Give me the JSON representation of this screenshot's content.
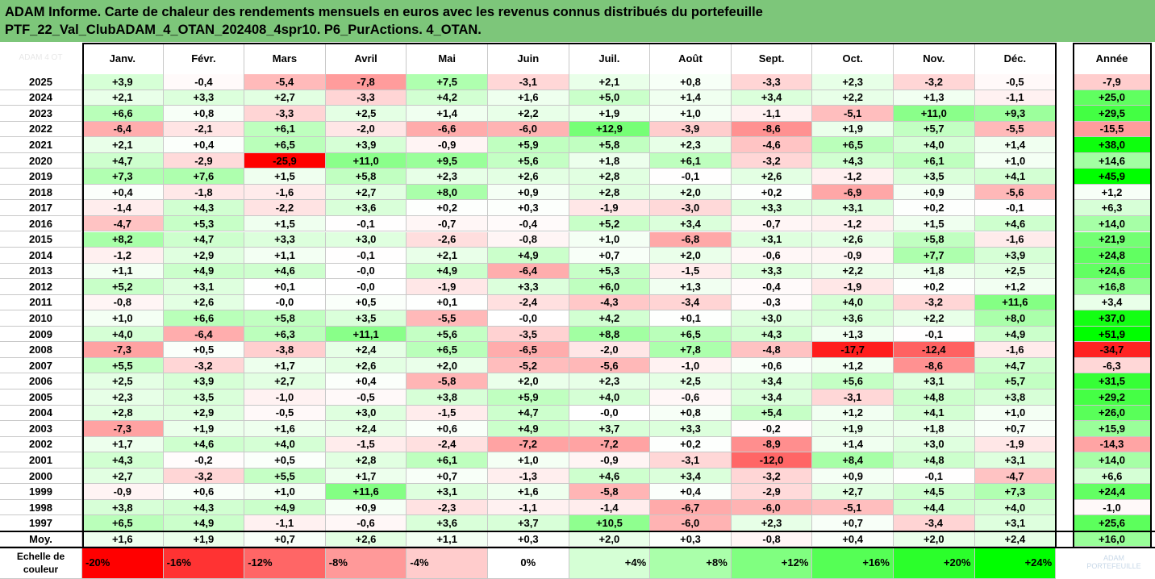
{
  "title_lines": [
    "ADAM Informe. Carte de chaleur des rendements mensuels en euros avec les revenus connus distribués du portefeuille",
    "PTF_22_Val_ClubADAM_4_OTAN_202408_4spr10. P6_PurActions. 4_OTAN."
  ],
  "corner_text": "ADAM 4 OT",
  "watermark": [
    "ADAM",
    "PORTEFEUILLE"
  ],
  "chart_data": {
    "type": "heatmap",
    "columns": [
      "Janv.",
      "Févr.",
      "Mars",
      "Avril",
      "Mai",
      "Juin",
      "Juil.",
      "Août",
      "Sept.",
      "Oct.",
      "Nov.",
      "Déc."
    ],
    "year_column": "Année",
    "rows": [
      {
        "label": "2025",
        "values": [
          "+3,9",
          "-0,4",
          "-5,4",
          "-7,8",
          "+7,5",
          "-3,1",
          "+2,1",
          "+0,8",
          "-3,3",
          "+2,3",
          "-3,2",
          "-0,5"
        ],
        "year": "-7,9"
      },
      {
        "label": "2024",
        "values": [
          "+2,1",
          "+3,3",
          "+2,7",
          "-3,3",
          "+4,2",
          "+1,6",
          "+5,0",
          "+1,4",
          "+3,4",
          "+2,2",
          "+1,3",
          "-1,1"
        ],
        "year": "+25,0"
      },
      {
        "label": "2023",
        "values": [
          "+6,6",
          "+0,8",
          "-3,3",
          "+2,5",
          "+1,4",
          "+2,2",
          "+1,9",
          "+1,0",
          "-1,1",
          "-5,1",
          "+11,0",
          "+9,3"
        ],
        "year": "+29,5"
      },
      {
        "label": "2022",
        "values": [
          "-6,4",
          "-2,1",
          "+6,1",
          "-2,0",
          "-6,6",
          "-6,0",
          "+12,9",
          "-3,9",
          "-8,6",
          "+1,9",
          "+5,7",
          "-5,5"
        ],
        "year": "-15,5"
      },
      {
        "label": "2021",
        "values": [
          "+2,1",
          "+0,4",
          "+6,5",
          "+3,9",
          "-0,9",
          "+5,9",
          "+5,8",
          "+2,3",
          "-4,6",
          "+6,5",
          "+4,0",
          "+1,4"
        ],
        "year": "+38,0"
      },
      {
        "label": "2020",
        "values": [
          "+4,7",
          "-2,9",
          "-25,9",
          "+11,0",
          "+9,5",
          "+5,6",
          "+1,8",
          "+6,1",
          "-3,2",
          "+4,3",
          "+6,1",
          "+1,0"
        ],
        "year": "+14,6"
      },
      {
        "label": "2019",
        "values": [
          "+7,3",
          "+7,6",
          "+1,5",
          "+5,8",
          "+2,3",
          "+2,6",
          "+2,8",
          "-0,1",
          "+2,6",
          "-1,2",
          "+3,5",
          "+4,1"
        ],
        "year": "+45,9"
      },
      {
        "label": "2018",
        "values": [
          "+0,4",
          "-1,8",
          "-1,6",
          "+2,7",
          "+8,0",
          "+0,9",
          "+2,8",
          "+2,0",
          "+0,2",
          "-6,9",
          "+0,9",
          "-5,6"
        ],
        "year": "+1,2"
      },
      {
        "label": "2017",
        "values": [
          "-1,4",
          "+4,3",
          "-2,2",
          "+3,6",
          "+0,2",
          "+0,3",
          "-1,9",
          "-3,0",
          "+3,3",
          "+3,1",
          "+0,2",
          "-0,1"
        ],
        "year": "+6,3"
      },
      {
        "label": "2016",
        "values": [
          "-4,7",
          "+5,3",
          "+1,5",
          "-0,1",
          "-0,7",
          "-0,4",
          "+5,2",
          "+3,4",
          "-0,7",
          "-1,2",
          "+1,5",
          "+4,6"
        ],
        "year": "+14,0"
      },
      {
        "label": "2015",
        "values": [
          "+8,2",
          "+4,7",
          "+3,3",
          "+3,0",
          "-2,6",
          "-0,8",
          "+1,0",
          "-6,8",
          "+3,1",
          "+2,6",
          "+5,8",
          "-1,6"
        ],
        "year": "+21,9"
      },
      {
        "label": "2014",
        "values": [
          "-1,2",
          "+2,9",
          "+1,1",
          "-0,1",
          "+2,1",
          "+4,9",
          "+0,7",
          "+2,0",
          "-0,6",
          "-0,9",
          "+7,7",
          "+3,9"
        ],
        "year": "+24,8"
      },
      {
        "label": "2013",
        "values": [
          "+1,1",
          "+4,9",
          "+4,6",
          "-0,0",
          "+4,9",
          "-6,4",
          "+5,3",
          "-1,5",
          "+3,3",
          "+2,2",
          "+1,8",
          "+2,5"
        ],
        "year": "+24,6"
      },
      {
        "label": "2012",
        "values": [
          "+5,2",
          "+3,1",
          "+0,1",
          "-0,0",
          "-1,9",
          "+3,3",
          "+6,0",
          "+1,3",
          "-0,4",
          "-1,9",
          "+0,2",
          "+1,2"
        ],
        "year": "+16,8"
      },
      {
        "label": "2011",
        "values": [
          "-0,8",
          "+2,6",
          "-0,0",
          "+0,5",
          "+0,1",
          "-2,4",
          "-4,3",
          "-3,4",
          "-0,3",
          "+4,0",
          "-3,2",
          "+11,6"
        ],
        "year": "+3,4"
      },
      {
        "label": "2010",
        "values": [
          "+1,0",
          "+6,6",
          "+5,8",
          "+3,5",
          "-5,5",
          "-0,0",
          "+4,2",
          "+0,1",
          "+3,0",
          "+3,6",
          "+2,2",
          "+8,0"
        ],
        "year": "+37,0"
      },
      {
        "label": "2009",
        "values": [
          "+4,0",
          "-6,4",
          "+6,3",
          "+11,1",
          "+5,6",
          "-3,5",
          "+8,8",
          "+6,5",
          "+4,3",
          "+1,3",
          "-0,1",
          "+4,9"
        ],
        "year": "+51,9"
      },
      {
        "label": "2008",
        "values": [
          "-7,3",
          "+0,5",
          "-3,8",
          "+2,4",
          "+6,5",
          "-6,5",
          "-2,0",
          "+7,8",
          "-4,8",
          "-17,7",
          "-12,4",
          "-1,6"
        ],
        "year": "-34,7"
      },
      {
        "label": "2007",
        "values": [
          "+5,5",
          "-3,2",
          "+1,7",
          "+2,6",
          "+2,0",
          "-5,2",
          "-5,6",
          "-1,0",
          "+0,6",
          "+1,2",
          "-8,6",
          "+4,7"
        ],
        "year": "-6,3"
      },
      {
        "label": "2006",
        "values": [
          "+2,5",
          "+3,9",
          "+2,7",
          "+0,4",
          "-5,8",
          "+2,0",
          "+2,3",
          "+2,5",
          "+3,4",
          "+5,6",
          "+3,1",
          "+5,7"
        ],
        "year": "+31,5"
      },
      {
        "label": "2005",
        "values": [
          "+2,3",
          "+3,5",
          "-1,0",
          "-0,5",
          "+3,8",
          "+5,9",
          "+4,0",
          "-0,6",
          "+3,4",
          "-3,1",
          "+4,8",
          "+3,8"
        ],
        "year": "+29,2"
      },
      {
        "label": "2004",
        "values": [
          "+2,8",
          "+2,9",
          "-0,5",
          "+3,0",
          "-1,5",
          "+4,7",
          "-0,0",
          "+0,8",
          "+5,4",
          "+1,2",
          "+4,1",
          "+1,0"
        ],
        "year": "+26,0"
      },
      {
        "label": "2003",
        "values": [
          "-7,3",
          "+1,9",
          "+1,6",
          "+2,4",
          "+0,6",
          "+4,9",
          "+3,7",
          "+3,3",
          "-0,2",
          "+1,9",
          "+1,8",
          "+0,7"
        ],
        "year": "+15,9"
      },
      {
        "label": "2002",
        "values": [
          "+1,7",
          "+4,6",
          "+4,0",
          "-1,5",
          "-2,4",
          "-7,2",
          "-7,2",
          "+0,2",
          "-8,9",
          "+1,4",
          "+3,0",
          "-1,9"
        ],
        "year": "-14,3"
      },
      {
        "label": "2001",
        "values": [
          "+4,3",
          "-0,2",
          "+0,5",
          "+2,8",
          "+6,1",
          "+1,0",
          "-0,9",
          "-3,1",
          "-12,0",
          "+8,4",
          "+4,8",
          "+3,1"
        ],
        "year": "+14,0"
      },
      {
        "label": "2000",
        "values": [
          "+2,7",
          "-3,2",
          "+5,5",
          "+1,7",
          "+0,7",
          "-1,3",
          "+4,6",
          "+3,4",
          "-3,2",
          "+0,9",
          "-0,1",
          "-4,7"
        ],
        "year": "+6,6"
      },
      {
        "label": "1999",
        "values": [
          "-0,9",
          "+0,6",
          "+1,0",
          "+11,6",
          "+3,1",
          "+1,6",
          "-5,8",
          "+0,4",
          "-2,9",
          "+2,7",
          "+4,5",
          "+7,3"
        ],
        "year": "+24,4"
      },
      {
        "label": "1998",
        "values": [
          "+3,8",
          "+4,3",
          "+4,9",
          "+0,9",
          "-2,3",
          "-1,1",
          "-1,4",
          "-6,7",
          "-6,0",
          "-5,1",
          "+4,4",
          "+4,0"
        ],
        "year": "-1,0"
      },
      {
        "label": "1997",
        "values": [
          "+6,5",
          "+4,9",
          "-1,1",
          "-0,6",
          "+3,6",
          "+3,7",
          "+10,5",
          "-6,0",
          "+2,3",
          "+0,7",
          "-3,4",
          "+3,1"
        ],
        "year": "+25,6"
      }
    ],
    "average": {
      "label": "Moy.",
      "values": [
        "+1,6",
        "+1,9",
        "+0,7",
        "+2,6",
        "+1,1",
        "+0,3",
        "+2,0",
        "+0,3",
        "-0,8",
        "+0,4",
        "+2,0",
        "+2,4"
      ],
      "year": "+16,0"
    },
    "scale": {
      "label_lines": [
        "Echelle de",
        "couleur"
      ],
      "steps": [
        "-20%",
        "-16%",
        "-12%",
        "-8%",
        "-4%",
        "0%",
        "+4%",
        "+8%",
        "+12%",
        "+16%",
        "+20%",
        "+24%"
      ]
    },
    "colors": {
      "negative_max": "#ff0000",
      "neutral": "#ffffff",
      "positive_max": "#00ff00"
    }
  }
}
